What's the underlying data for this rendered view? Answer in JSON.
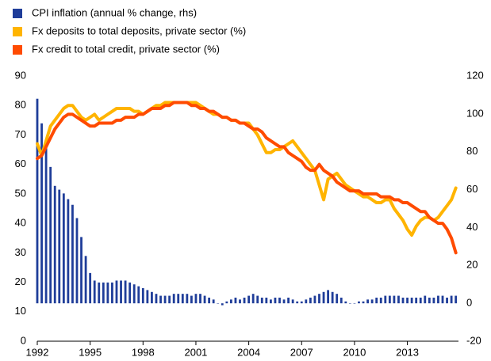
{
  "chart_data": {
    "type": "combo",
    "x": [
      1992,
      1992.25,
      1992.5,
      1992.75,
      1993,
      1993.25,
      1993.5,
      1993.75,
      1994,
      1994.25,
      1994.5,
      1994.75,
      1995,
      1995.25,
      1995.5,
      1995.75,
      1996,
      1996.25,
      1996.5,
      1996.75,
      1997,
      1997.25,
      1997.5,
      1997.75,
      1998,
      1998.25,
      1998.5,
      1998.75,
      1999,
      1999.25,
      1999.5,
      1999.75,
      2000,
      2000.25,
      2000.5,
      2000.75,
      2001,
      2001.25,
      2001.5,
      2001.75,
      2002,
      2002.25,
      2002.5,
      2002.75,
      2003,
      2003.25,
      2003.5,
      2003.75,
      2004,
      2004.25,
      2004.5,
      2004.75,
      2005,
      2005.25,
      2005.5,
      2005.75,
      2006,
      2006.25,
      2006.5,
      2006.75,
      2007,
      2007.25,
      2007.5,
      2007.75,
      2008,
      2008.25,
      2008.5,
      2008.75,
      2009,
      2009.25,
      2009.5,
      2009.75,
      2010,
      2010.25,
      2010.5,
      2010.75,
      2011,
      2011.25,
      2011.5,
      2011.75,
      2012,
      2012.25,
      2012.5,
      2012.75,
      2013,
      2013.25,
      2013.5,
      2013.75,
      2014,
      2014.25,
      2014.5,
      2014.75,
      2015,
      2015.25,
      2015.5,
      2015.75
    ],
    "series": [
      {
        "name": "CPI inflation (annual % change, rhs)",
        "type": "bar",
        "axis": "y2",
        "color": "#1f3d99",
        "values": [
          108,
          95,
          82,
          72,
          62,
          60,
          58,
          55,
          52,
          45,
          35,
          25,
          16,
          12,
          11,
          11,
          11,
          11,
          12,
          12,
          12,
          11,
          10,
          9,
          8,
          7,
          6,
          5,
          4,
          4,
          4,
          5,
          5,
          5,
          5,
          4,
          5,
          5,
          4,
          3,
          2,
          0,
          -1,
          1,
          2,
          3,
          2,
          3,
          4,
          5,
          4,
          3,
          3,
          2,
          3,
          3,
          2,
          3,
          2,
          1,
          1,
          2,
          3,
          4,
          5,
          6,
          7,
          6,
          5,
          3,
          1,
          0,
          0,
          1,
          1,
          2,
          2,
          3,
          3,
          4,
          4,
          4,
          4,
          3,
          3,
          3,
          3,
          3,
          4,
          3,
          3,
          4,
          4,
          3,
          4,
          4
        ]
      },
      {
        "name": "Fx deposits to total deposits, private sector (%)",
        "type": "line",
        "color": "#ffb400",
        "values": [
          67,
          63,
          68,
          73,
          75,
          77,
          79,
          80,
          80,
          78,
          76,
          75,
          76,
          77,
          75,
          76,
          77,
          78,
          79,
          79,
          79,
          79,
          78,
          78,
          77,
          78,
          79,
          80,
          80,
          81,
          81,
          81,
          81,
          81,
          81,
          81,
          81,
          80,
          79,
          78,
          77,
          77,
          76,
          76,
          75,
          75,
          74,
          74,
          74,
          72,
          70,
          67,
          64,
          64,
          65,
          65,
          66,
          67,
          68,
          66,
          64,
          62,
          60,
          58,
          53,
          48,
          55,
          56,
          57,
          55,
          53,
          52,
          51,
          50,
          49,
          49,
          48,
          47,
          47,
          48,
          48,
          45,
          43,
          41,
          38,
          36,
          39,
          41,
          42,
          42,
          41,
          42,
          44,
          46,
          48,
          52
        ]
      },
      {
        "name": "Fx credit to total credit, private sector (%)",
        "type": "line",
        "color": "#ff4b00",
        "values": [
          62,
          63,
          66,
          69,
          72,
          74,
          76,
          77,
          77,
          76,
          75,
          74,
          73,
          73,
          74,
          74,
          74,
          74,
          75,
          75,
          76,
          76,
          76,
          77,
          77,
          78,
          79,
          79,
          79,
          80,
          80,
          81,
          81,
          81,
          81,
          80,
          80,
          79,
          79,
          78,
          78,
          77,
          76,
          76,
          75,
          75,
          74,
          74,
          73,
          72,
          72,
          71,
          69,
          68,
          67,
          66,
          66,
          64,
          63,
          62,
          61,
          59,
          58,
          58,
          60,
          58,
          57,
          56,
          54,
          53,
          52,
          51,
          51,
          51,
          50,
          50,
          50,
          50,
          49,
          49,
          49,
          48,
          48,
          47,
          47,
          46,
          45,
          44,
          44,
          42,
          41,
          40,
          40,
          38,
          35,
          30
        ]
      }
    ],
    "xlim": [
      1992,
      2015.9
    ],
    "xticks": [
      1992,
      1995,
      1998,
      2001,
      2004,
      2007,
      2010,
      2013
    ],
    "ylim": [
      0,
      90
    ],
    "yticks": [
      0,
      10,
      20,
      30,
      40,
      50,
      60,
      70,
      80,
      90
    ],
    "y2lim": [
      -20,
      120
    ],
    "y2ticks": [
      -20,
      0,
      20,
      40,
      60,
      80,
      100,
      120
    ],
    "legend": "top-left"
  }
}
